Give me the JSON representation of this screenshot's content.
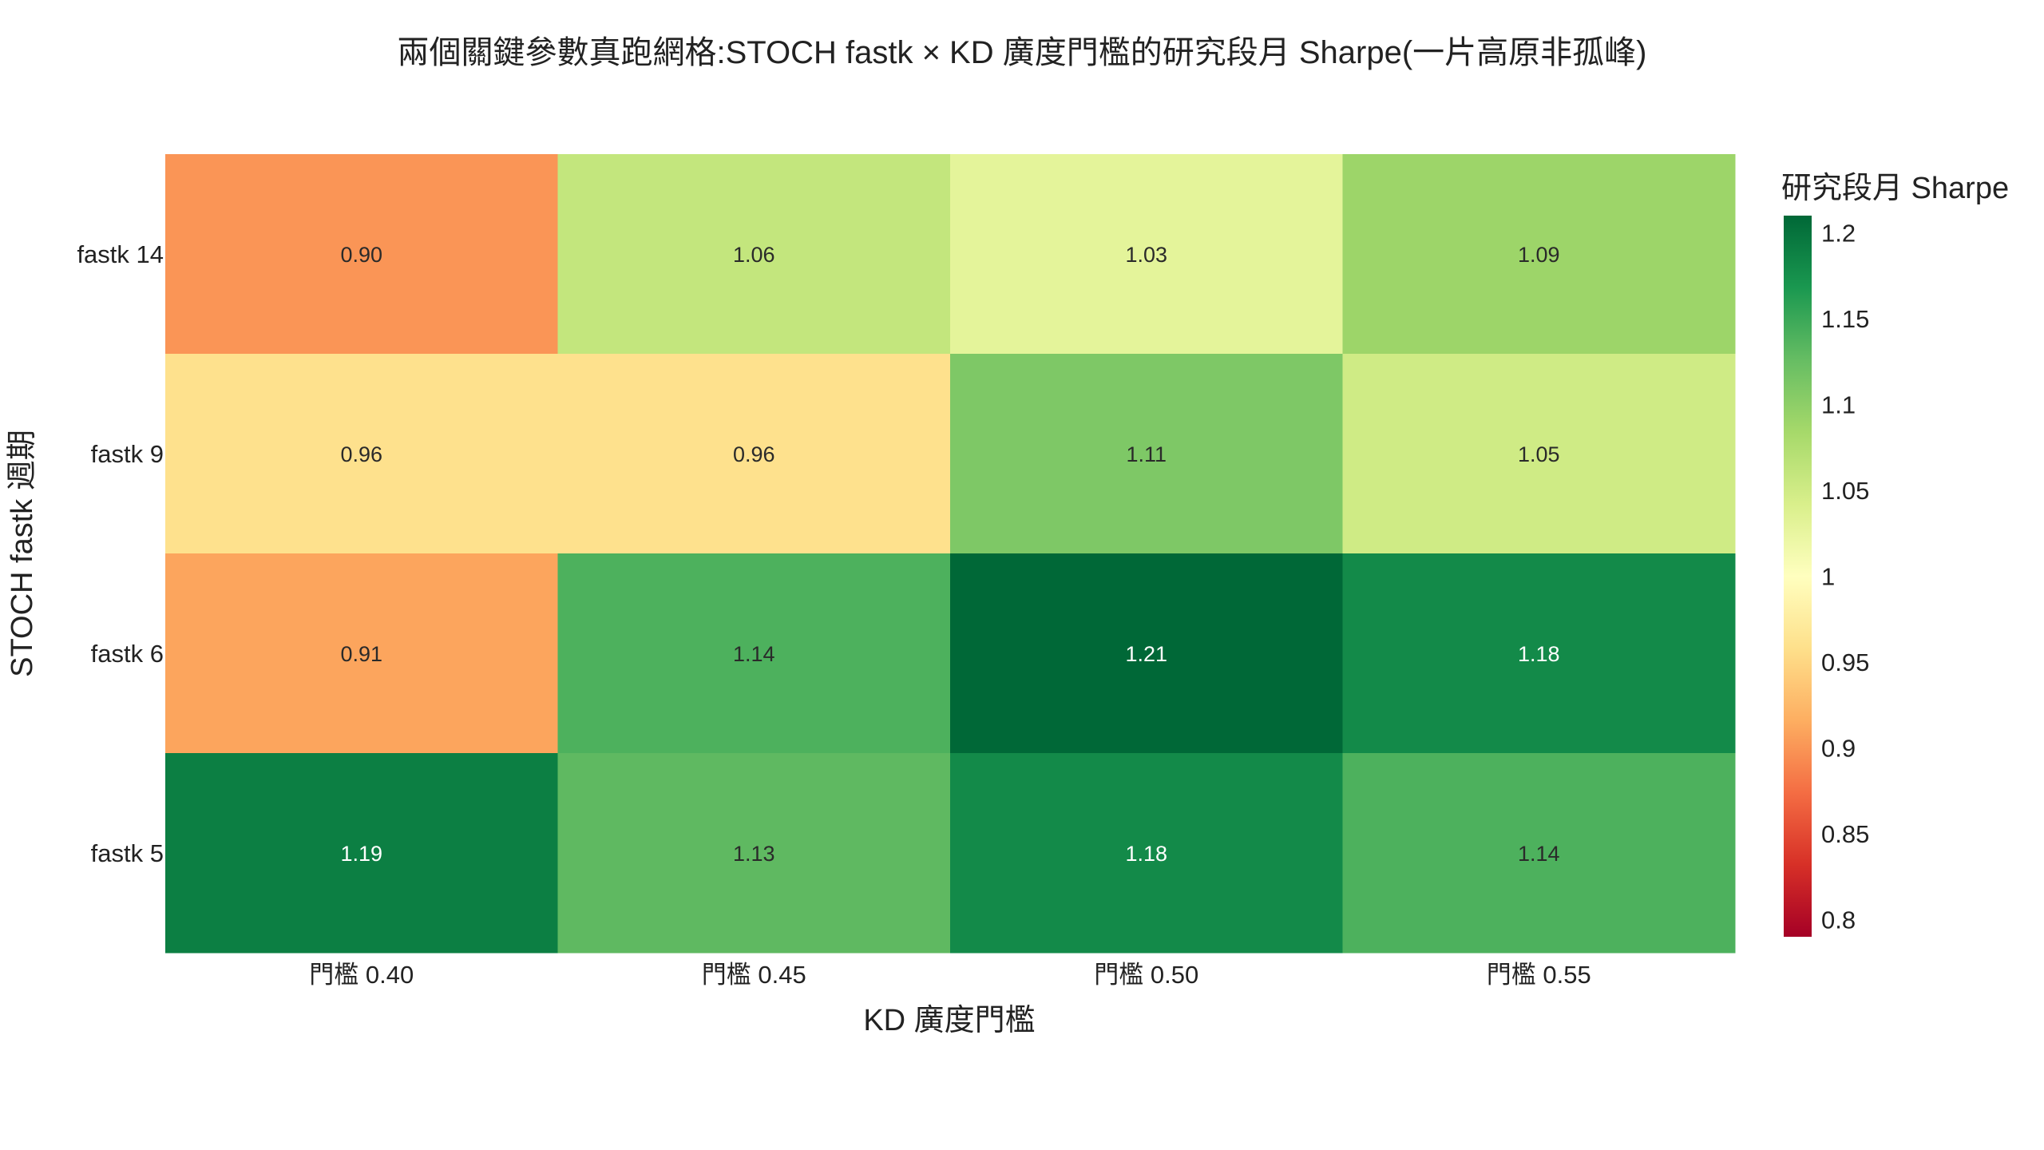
{
  "chart_data": {
    "type": "heatmap",
    "title": "兩個關鍵參數真跑網格:STOCH fastk × KD 廣度門檻的研究段月 Sharpe(一片高原非孤峰)",
    "xlabel": "KD 廣度門檻",
    "ylabel": "STOCH fastk 週期",
    "x_categories": [
      "門檻 0.40",
      "門檻 0.45",
      "門檻 0.50",
      "門檻 0.55"
    ],
    "y_categories": [
      "fastk 14",
      "fastk 9",
      "fastk 6",
      "fastk 5"
    ],
    "values": [
      [
        0.9,
        1.06,
        1.03,
        1.09
      ],
      [
        0.96,
        0.96,
        1.11,
        1.05
      ],
      [
        0.91,
        1.14,
        1.21,
        1.18
      ],
      [
        1.19,
        1.13,
        1.18,
        1.14
      ]
    ],
    "value_labels": [
      [
        "0.90",
        "1.06",
        "1.03",
        "1.09"
      ],
      [
        "0.96",
        "0.96",
        "1.11",
        "1.05"
      ],
      [
        "0.91",
        "1.14",
        "1.21",
        "1.18"
      ],
      [
        "1.19",
        "1.13",
        "1.18",
        "1.14"
      ]
    ],
    "colorscale": "RdYlGn",
    "zmin": 0.79,
    "zmax": 1.21,
    "colorbar": {
      "title": "研究段月 Sharpe",
      "ticks": [
        0.8,
        0.85,
        0.9,
        0.95,
        1,
        1.05,
        1.1,
        1.15,
        1.2
      ],
      "tick_labels": [
        "0.8",
        "0.85",
        "0.9",
        "0.95",
        "1",
        "1.05",
        "1.1",
        "1.15",
        "1.2"
      ]
    }
  }
}
